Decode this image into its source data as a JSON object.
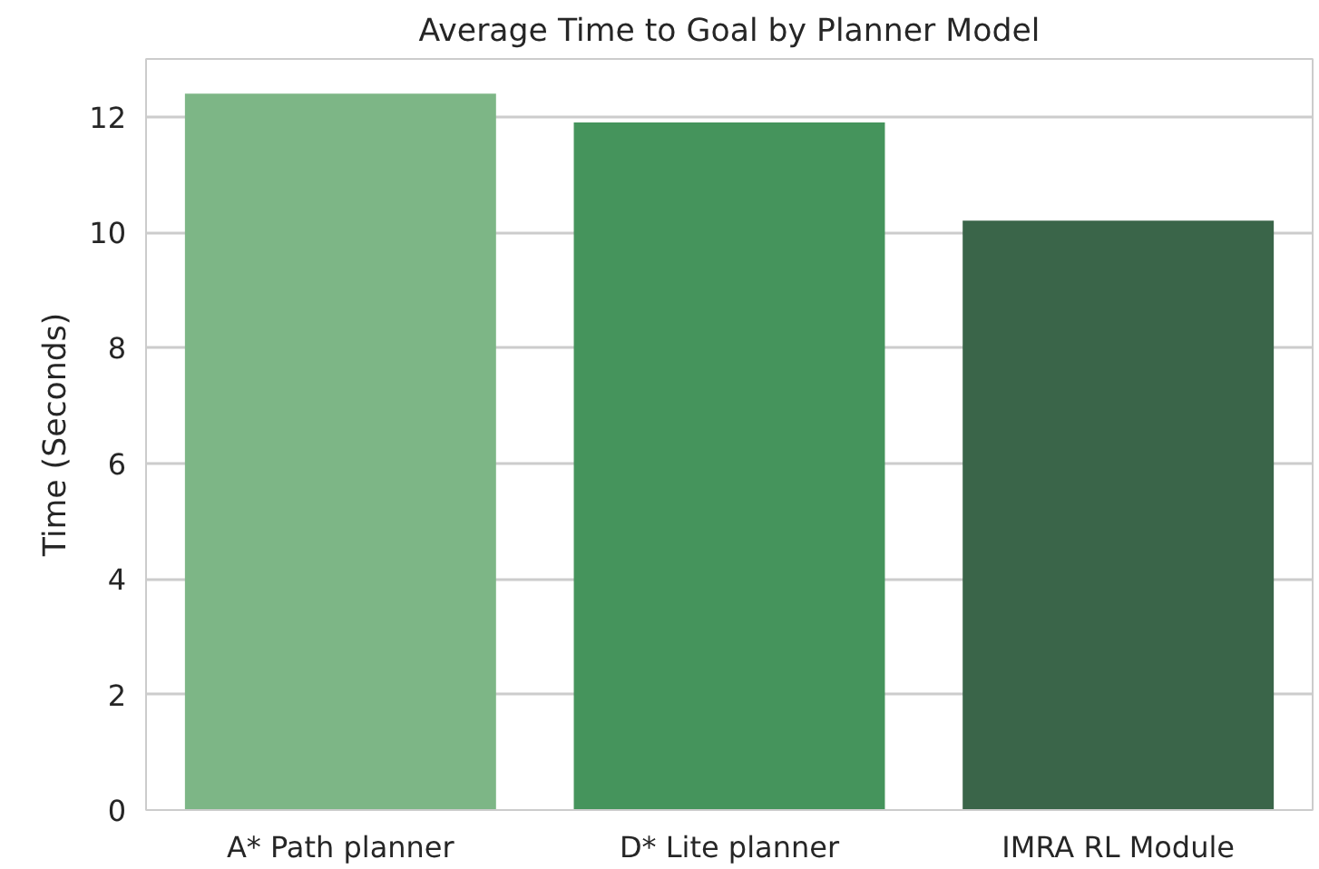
{
  "chart_data": {
    "type": "bar",
    "title": "Average Time to Goal by Planner Model",
    "ylabel": "Time (Seconds)",
    "categories": [
      "A* Path planner",
      "D* Lite planner",
      "IMRA RL Module"
    ],
    "values": [
      12.4,
      11.9,
      10.2
    ],
    "colors": [
      "#7db686",
      "#45945c",
      "#3a6549"
    ],
    "ylim": [
      0,
      13
    ],
    "yticks": [
      0,
      2,
      4,
      6,
      8,
      10,
      12
    ],
    "grid": "y"
  }
}
